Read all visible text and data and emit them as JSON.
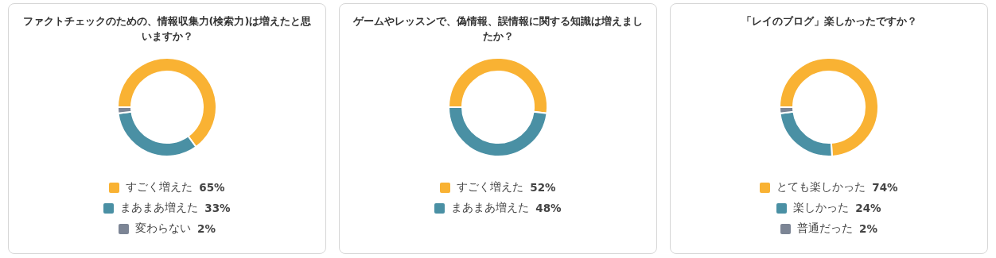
{
  "chart_data": [
    {
      "type": "donut",
      "title": "ファクトチェックのための、情報収集力(検索力)は増えたと思いますか？",
      "categories": [
        "すごく増えた",
        "まあまあ増えた",
        "変わらない"
      ],
      "values": [
        65,
        33,
        2
      ],
      "value_labels": [
        "65%",
        "33%",
        "2%"
      ],
      "colors": [
        "#f9b233",
        "#4a90a4",
        "#7c8595"
      ],
      "legend": "bottom"
    },
    {
      "type": "donut",
      "title": "ゲームやレッスンで、偽情報、誤情報に関する知識は増えましたか？",
      "categories": [
        "すごく増えた",
        "まあまあ増えた"
      ],
      "values": [
        52,
        48
      ],
      "value_labels": [
        "52%",
        "48%"
      ],
      "colors": [
        "#f9b233",
        "#4a90a4"
      ],
      "legend": "bottom"
    },
    {
      "type": "donut",
      "title": "「レイのブログ」楽しかったですか？",
      "categories": [
        "とても楽しかった",
        "楽しかった",
        "普通だった"
      ],
      "values": [
        74,
        24,
        2
      ],
      "value_labels": [
        "74%",
        "24%",
        "2%"
      ],
      "colors": [
        "#f9b233",
        "#4a90a4",
        "#7c8595"
      ],
      "legend": "bottom"
    }
  ]
}
